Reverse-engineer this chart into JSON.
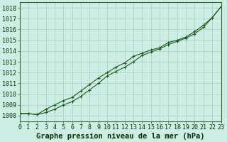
{
  "title": "Graphe pression niveau de la mer (hPa)",
  "background_color": "#cceee4",
  "plot_bg_color": "#cceee4",
  "line_color": "#1a5c1a",
  "grid_color": "#b0c8c0",
  "x_values": [
    0,
    1,
    2,
    3,
    4,
    5,
    6,
    7,
    8,
    9,
    10,
    11,
    12,
    13,
    14,
    15,
    16,
    17,
    18,
    19,
    20,
    21,
    22,
    23
  ],
  "series1": [
    1008.2,
    1008.2,
    1008.1,
    1008.6,
    1009.0,
    1009.4,
    1009.7,
    1010.3,
    1010.9,
    1011.5,
    1012.0,
    1012.5,
    1012.9,
    1013.5,
    1013.8,
    1014.1,
    1014.3,
    1014.8,
    1015.0,
    1015.3,
    1015.8,
    1016.4,
    1017.1,
    1018.1
  ],
  "series2": [
    1008.2,
    1008.2,
    1008.1,
    1008.3,
    1008.6,
    1009.0,
    1009.3,
    1009.8,
    1010.4,
    1011.0,
    1011.7,
    1012.1,
    1012.5,
    1013.0,
    1013.6,
    1013.9,
    1014.2,
    1014.6,
    1014.9,
    1015.2,
    1015.6,
    1016.2,
    1017.1,
    1018.1
  ],
  "ylim_min": 1007.5,
  "ylim_max": 1018.5,
  "yticks": [
    1008,
    1009,
    1010,
    1011,
    1012,
    1013,
    1014,
    1015,
    1016,
    1017,
    1018
  ],
  "xlim_min": 0,
  "xlim_max": 23,
  "title_fontsize": 7.5,
  "tick_fontsize": 6
}
